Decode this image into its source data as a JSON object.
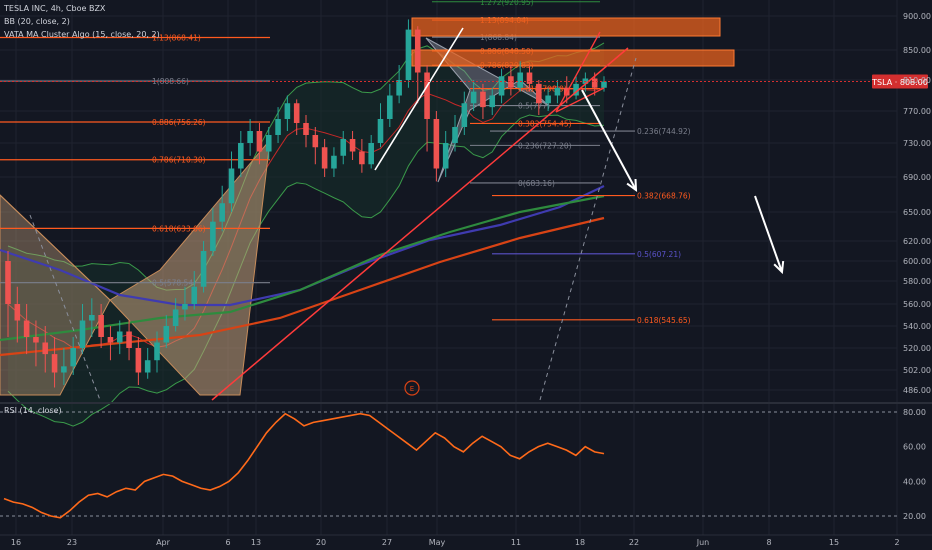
{
  "header": {
    "symbol_line": "TESLA INC, 4h, Cboe BZX",
    "bb_line": "BB (20, close, 2)",
    "ma_line": "VATA MA Cluster Algo (15, close, 20, 2)",
    "rsi_line": "RSI (14, close)",
    "circle_marker": "E"
  },
  "colors": {
    "background": "#131722",
    "up": "#26a69a",
    "down": "#ef5350",
    "fib": "#ff5a1f",
    "rsi": "#ff6a1a",
    "price_badge": "#d32f2f",
    "box": "#e8611e"
  },
  "chart_data": {
    "type": "candlestick",
    "title": "TESLA INC, 4h, Cboe BZX",
    "last_price_label": "TSLA · 808.00",
    "last_price": 808,
    "price_axis": {
      "ticks": [
        900,
        850,
        810,
        770,
        730,
        690,
        650,
        620,
        600,
        580,
        560,
        540,
        520,
        502,
        486
      ],
      "tick_labels": [
        "900.00",
        "850.00",
        "810.00",
        "770.00",
        "730.00",
        "690.00",
        "650.00",
        "620.00",
        "600.00",
        "580.00",
        "560.00",
        "540.00",
        "520.00",
        "502.00",
        "486.00"
      ]
    },
    "time_axis": {
      "labels": [
        "16",
        "23",
        "Apr",
        "6",
        "13",
        "20",
        "27",
        "May",
        "11",
        "18",
        "22",
        "Jun",
        "8",
        "15",
        "2"
      ]
    },
    "fib_levels_left": [
      {
        "label": "1.13(868.41)",
        "price": 868.41
      },
      {
        "label": "1(808.66)",
        "price": 808.66
      },
      {
        "label": "0.886(756.26)",
        "price": 756.26
      },
      {
        "label": "0.786(710.30)",
        "price": 710.3
      },
      {
        "label": "0.618(633.06)",
        "price": 633.06
      },
      {
        "label": "0.5(578.54)",
        "price": 578.54
      }
    ],
    "fib_levels_right": [
      {
        "label": "1.272(920.95)",
        "price": 920.95
      },
      {
        "label": "1.13(894.04)",
        "price": 894.04
      },
      {
        "label": "1(868.84)",
        "price": 868.84
      },
      {
        "label": "0.886(848.50)",
        "price": 848.5
      },
      {
        "label": "0.786(829.83)",
        "price": 829.83
      },
      {
        "label": "0.618(798.9)",
        "price": 798.9
      },
      {
        "label": "0.5(777)",
        "price": 777
      },
      {
        "label": "0.382(754.45)",
        "price": 754.45
      },
      {
        "label": "0.236(744.92)",
        "price": 744.92
      },
      {
        "label": "0.236(727.20)",
        "price": 727.2
      },
      {
        "label": "0(683.16)",
        "price": 683.16
      },
      {
        "label": "0.382(668.76)",
        "price": 668.76
      },
      {
        "label": "0.5(607.21)",
        "price": 607.21
      },
      {
        "label": "0.618(545.65)",
        "price": 545.65
      }
    ],
    "candles": [
      [
        600,
        560,
        610,
        530
      ],
      [
        560,
        545,
        575,
        525
      ],
      [
        545,
        530,
        560,
        515
      ],
      [
        530,
        525,
        545,
        505
      ],
      [
        525,
        515,
        540,
        500
      ],
      [
        515,
        500,
        530,
        488
      ],
      [
        500,
        505,
        520,
        490
      ],
      [
        505,
        520,
        530,
        498
      ],
      [
        520,
        545,
        560,
        515
      ],
      [
        545,
        550,
        565,
        530
      ],
      [
        550,
        530,
        560,
        520
      ],
      [
        530,
        525,
        540,
        510
      ],
      [
        525,
        535,
        545,
        515
      ],
      [
        535,
        520,
        545,
        510
      ],
      [
        520,
        500,
        530,
        490
      ],
      [
        500,
        510,
        520,
        495
      ],
      [
        510,
        525,
        535,
        500
      ],
      [
        525,
        540,
        550,
        520
      ],
      [
        540,
        555,
        565,
        535
      ],
      [
        555,
        560,
        575,
        545
      ],
      [
        560,
        575,
        590,
        555
      ],
      [
        575,
        610,
        620,
        570
      ],
      [
        610,
        640,
        655,
        605
      ],
      [
        640,
        660,
        680,
        630
      ],
      [
        660,
        700,
        720,
        650
      ],
      [
        700,
        730,
        745,
        690
      ],
      [
        730,
        745,
        760,
        715
      ],
      [
        745,
        720,
        755,
        705
      ],
      [
        720,
        740,
        750,
        710
      ],
      [
        740,
        760,
        775,
        730
      ],
      [
        760,
        780,
        790,
        745
      ],
      [
        780,
        755,
        785,
        740
      ],
      [
        755,
        740,
        765,
        725
      ],
      [
        740,
        725,
        750,
        705
      ],
      [
        725,
        700,
        735,
        690
      ],
      [
        700,
        715,
        725,
        690
      ],
      [
        715,
        735,
        745,
        705
      ],
      [
        735,
        720,
        745,
        710
      ],
      [
        720,
        705,
        735,
        695
      ],
      [
        705,
        730,
        740,
        700
      ],
      [
        730,
        760,
        780,
        725
      ],
      [
        760,
        790,
        805,
        750
      ],
      [
        790,
        810,
        830,
        780
      ],
      [
        810,
        880,
        895,
        800
      ],
      [
        880,
        820,
        885,
        780
      ],
      [
        820,
        760,
        830,
        720
      ],
      [
        760,
        700,
        770,
        685
      ],
      [
        700,
        730,
        745,
        690
      ],
      [
        730,
        750,
        765,
        720
      ],
      [
        750,
        780,
        795,
        740
      ],
      [
        780,
        795,
        810,
        770
      ],
      [
        795,
        775,
        805,
        760
      ],
      [
        775,
        790,
        800,
        765
      ],
      [
        790,
        815,
        825,
        780
      ],
      [
        815,
        800,
        830,
        790
      ],
      [
        800,
        820,
        835,
        795
      ],
      [
        820,
        805,
        830,
        795
      ],
      [
        805,
        780,
        810,
        765
      ],
      [
        780,
        790,
        800,
        770
      ],
      [
        790,
        800,
        810,
        780
      ],
      [
        800,
        790,
        815,
        780
      ],
      [
        790,
        805,
        815,
        785
      ],
      [
        805,
        812,
        820,
        795
      ],
      [
        812,
        800,
        820,
        790
      ],
      [
        800,
        808,
        815,
        795
      ]
    ],
    "rsi": {
      "label": "RSI (14, close)",
      "axis_ticks": [
        80,
        60,
        40,
        20
      ],
      "tick_labels": [
        "80.00",
        "60.00",
        "40.00",
        "20.00"
      ],
      "values": [
        30,
        28,
        27,
        25,
        22,
        20,
        19,
        23,
        28,
        32,
        33,
        31,
        34,
        36,
        35,
        40,
        42,
        44,
        43,
        40,
        38,
        36,
        35,
        37,
        40,
        45,
        52,
        60,
        68,
        74,
        79,
        76,
        72,
        74,
        75,
        76,
        77,
        78,
        79,
        78,
        74,
        70,
        66,
        62,
        58,
        63,
        68,
        65,
        60,
        57,
        62,
        66,
        63,
        60,
        55,
        53,
        57,
        60,
        62,
        60,
        58,
        55,
        60,
        57,
        56
      ]
    }
  }
}
